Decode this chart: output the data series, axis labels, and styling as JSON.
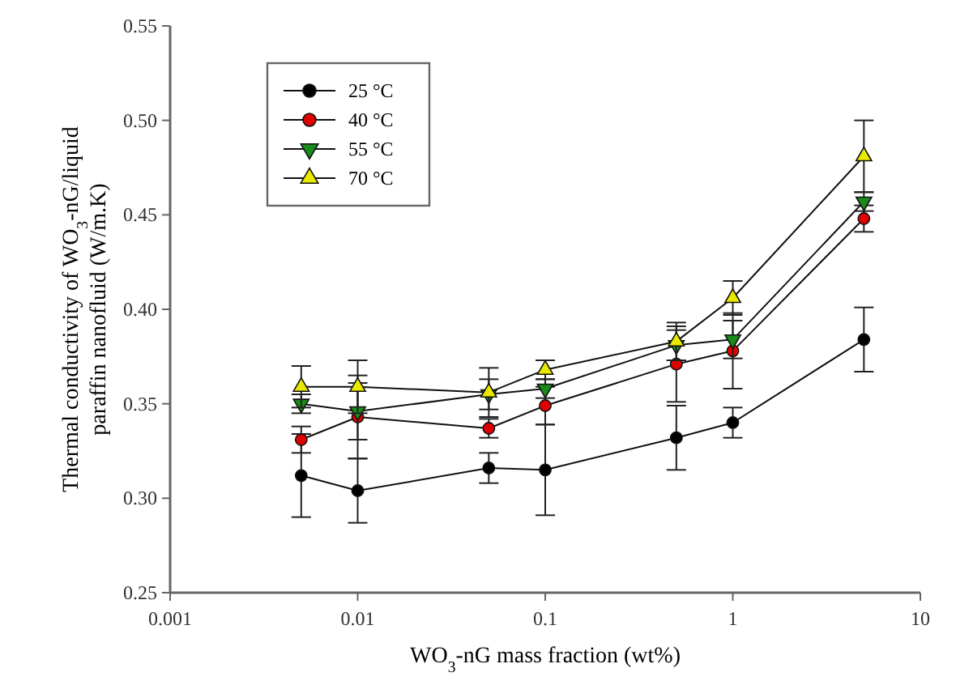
{
  "chart_data": {
    "type": "line",
    "xlabel": "WO$_{3}$-nG mass fraction (wt%)",
    "ylabel": "Thermal conductivity of WO$_{3}$-nG/liquid paraffin nanofluid (W/m.K)",
    "x": [
      0.005,
      0.01,
      0.05,
      0.1,
      0.5,
      1,
      5
    ],
    "log": "x",
    "xlim": [
      0.001,
      10
    ],
    "xticks": [
      0.001,
      0.01,
      0.1,
      1,
      10
    ],
    "ylim": [
      0.25,
      0.55
    ],
    "yticks": [
      {
        "value": 0.25,
        "label": "0.25"
      },
      {
        "value": 0.3,
        "label": "0.30"
      },
      {
        "value": 0.35,
        "label": "0.35"
      },
      {
        "value": 0.4,
        "label": "0.40"
      },
      {
        "value": 0.45,
        "label": "0.45"
      },
      {
        "value": 0.5,
        "label": "0.50"
      },
      {
        "value": 0.55,
        "label": "0.55"
      }
    ],
    "grid": false,
    "legend": "top left",
    "line_style": "solid",
    "series": [
      {
        "name": "25 °C",
        "color": "#000000",
        "marker": "circle",
        "values": [
          0.312,
          0.304,
          0.316,
          0.315,
          0.332,
          0.34,
          0.384
        ],
        "errors": [
          0.022,
          0.017,
          0.008,
          0.024,
          0.017,
          0.008,
          0.017
        ]
      },
      {
        "name": "40 °C",
        "color": "#e00000",
        "marker": "circle",
        "values": [
          0.331,
          0.343,
          0.337,
          0.349,
          0.371,
          0.378,
          0.448
        ],
        "errors": [
          0.007,
          0.022,
          0.005,
          0.01,
          0.02,
          0.02,
          0.007
        ]
      },
      {
        "name": "55 °C",
        "color": "#1a8a1a",
        "marker": "triangle-down",
        "values": [
          0.35,
          0.346,
          0.355,
          0.358,
          0.381,
          0.384,
          0.457
        ],
        "errors": [
          0.005,
          0.015,
          0.008,
          0.005,
          0.008,
          0.01,
          0.005
        ]
      },
      {
        "name": "70 °C",
        "color": "#e8e800",
        "marker": "triangle",
        "values": [
          0.359,
          0.359,
          0.356,
          0.368,
          0.383,
          0.406,
          0.481
        ],
        "errors": [
          0.011,
          0.014,
          0.013,
          0.005,
          0.01,
          0.009,
          0.019
        ]
      }
    ]
  }
}
